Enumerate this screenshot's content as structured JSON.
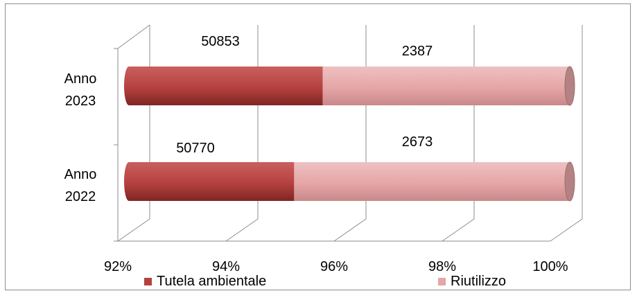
{
  "chart_data": {
    "type": "bar",
    "orientation": "horizontal",
    "stacked": "percent",
    "three_d": true,
    "categories": [
      [
        "Anno",
        "2023"
      ],
      [
        "Anno",
        "2022"
      ]
    ],
    "series": [
      {
        "name": "Tutela ambientale",
        "values": [
          50853,
          50770
        ],
        "color": "#b5413f",
        "labels": [
          "50853",
          "50770"
        ]
      },
      {
        "name": "Riutilizzo",
        "values": [
          2387,
          2673
        ],
        "color": "#e6a5a6",
        "labels": [
          "2387",
          "2673"
        ]
      }
    ],
    "xaxis": {
      "ticks": [
        "92%",
        "94%",
        "96%",
        "98%",
        "100%"
      ],
      "range": [
        92,
        100
      ]
    },
    "grid": true,
    "legend": "bottom"
  }
}
